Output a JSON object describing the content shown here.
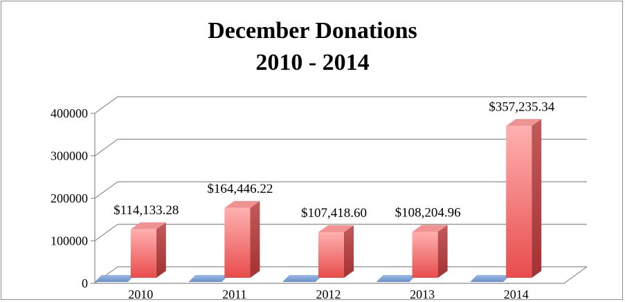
{
  "chart_data": {
    "type": "bar",
    "title_lines": [
      "December Donations",
      "2010 - 2014"
    ],
    "categories": [
      "2010",
      "2011",
      "2012",
      "2013",
      "2014"
    ],
    "series": [
      {
        "values": [
          114133.28,
          164446.22,
          107418.6,
          108204.96,
          357235.34
        ],
        "labels": [
          "$114,133.28",
          "$164,446.22",
          "$107,418.60",
          "$108,204.96",
          "$357,235.34"
        ]
      }
    ],
    "ylim": [
      0,
      400000
    ],
    "yticks": [
      "0",
      "100000",
      "200000",
      "300000",
      "400000"
    ],
    "grid": true,
    "style": "3d-column",
    "colors": {
      "bar_front_top": "#ffb0b0",
      "bar_front_bottom": "#e84c4c",
      "bar_side": "#b83a3a",
      "bar_top": "#f19292",
      "floor_marker": "#7a9fd4",
      "grid": "#8c8c8c"
    }
  }
}
